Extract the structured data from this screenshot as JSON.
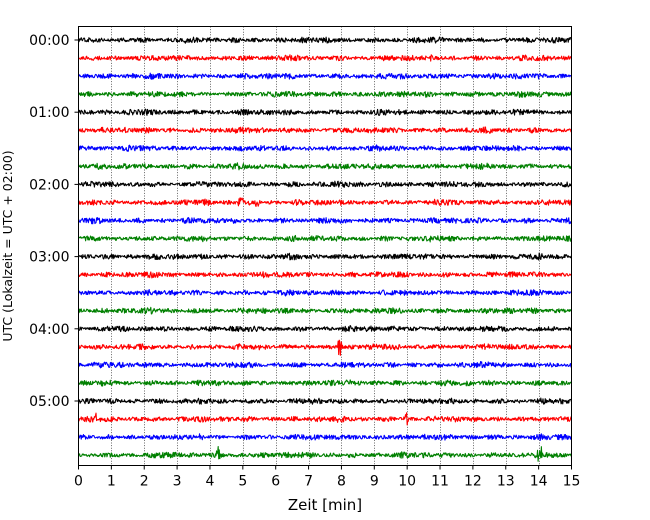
{
  "chart_data": {
    "type": "line",
    "subtype": "helicorder",
    "title": "",
    "xlabel": "Zeit  [min]",
    "ylabel": "UTC (Lokalzeit = UTC + 02:00)",
    "xlim": [
      0,
      15
    ],
    "x_ticks": [
      "0",
      "1",
      "2",
      "3",
      "4",
      "5",
      "6",
      "7",
      "8",
      "9",
      "10",
      "11",
      "12",
      "13",
      "14",
      "15"
    ],
    "y_tick_labels": [
      "00:00",
      "01:00",
      "02:00",
      "03:00",
      "04:00",
      "05:00"
    ],
    "grid": {
      "vertical": true,
      "horizontal": false
    },
    "line_colors": [
      "#000000",
      "#ff0000",
      "#0000ff",
      "#008000"
    ],
    "trace_count": 24,
    "trace_minutes": 15,
    "series": [
      {
        "start": "00:00",
        "events": []
      },
      {
        "start": "00:15",
        "events": []
      },
      {
        "start": "00:30",
        "events": []
      },
      {
        "start": "00:45",
        "events": []
      },
      {
        "start": "01:00",
        "events": []
      },
      {
        "start": "01:15",
        "events": []
      },
      {
        "start": "01:30",
        "events": []
      },
      {
        "start": "01:45",
        "events": []
      },
      {
        "start": "02:00",
        "events": []
      },
      {
        "start": "02:15",
        "events": [
          {
            "minute": 4.95,
            "amplitude": 9
          },
          {
            "minute": 5.45,
            "amplitude": 5
          }
        ]
      },
      {
        "start": "02:30",
        "events": []
      },
      {
        "start": "02:45",
        "events": []
      },
      {
        "start": "03:00",
        "events": []
      },
      {
        "start": "03:15",
        "events": []
      },
      {
        "start": "03:30",
        "events": []
      },
      {
        "start": "03:45",
        "events": []
      },
      {
        "start": "04:00",
        "events": []
      },
      {
        "start": "04:15",
        "events": [
          {
            "minute": 7.95,
            "amplitude": 11
          }
        ]
      },
      {
        "start": "04:30",
        "events": []
      },
      {
        "start": "04:45",
        "events": []
      },
      {
        "start": "05:00",
        "events": []
      },
      {
        "start": "05:15",
        "events": [
          {
            "minute": 0.55,
            "amplitude": 4
          },
          {
            "minute": 9.95,
            "amplitude": 8
          }
        ]
      },
      {
        "start": "05:30",
        "events": []
      },
      {
        "start": "05:45",
        "events": [
          {
            "minute": 4.25,
            "amplitude": 8
          },
          {
            "minute": 14.05,
            "amplitude": 9
          }
        ]
      }
    ]
  }
}
